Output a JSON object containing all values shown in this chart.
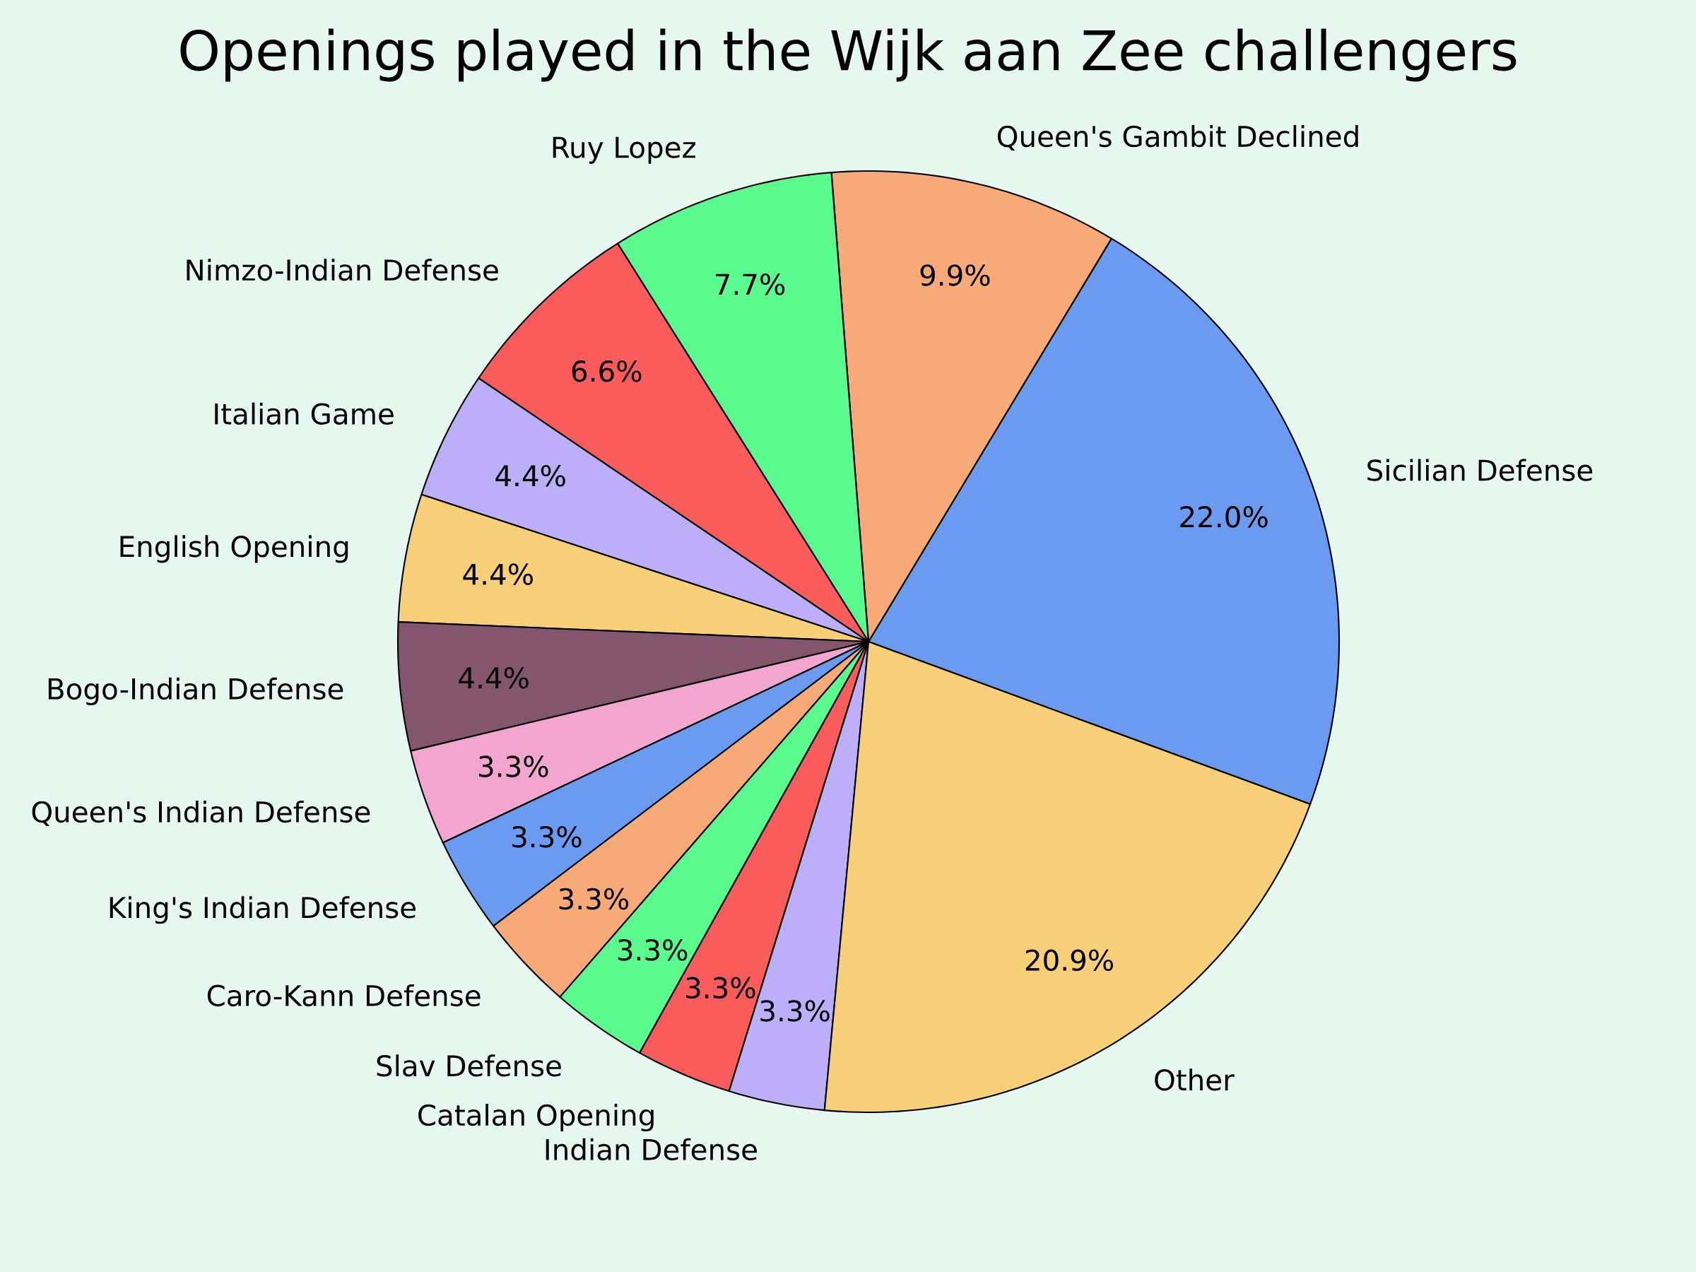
{
  "chart_data": {
    "type": "pie",
    "title": "Openings played in the Wijk aan Zee challengers",
    "categories": [
      "Sicilian Defense",
      "Queen's Gambit Declined",
      "Ruy Lopez",
      "Nimzo-Indian Defense",
      "Italian Game",
      "English Opening",
      "Bogo-Indian Defense",
      "Queen's Indian Defense",
      "King's Indian Defense",
      "Caro-Kann Defense",
      "Slav Defense",
      "Catalan Opening",
      "Indian Defense",
      "Other"
    ],
    "values": [
      22.0,
      9.9,
      7.7,
      6.6,
      4.4,
      4.4,
      4.4,
      3.3,
      3.3,
      3.3,
      3.3,
      3.3,
      3.3,
      20.9
    ],
    "value_labels": [
      "22.0%",
      "9.9%",
      "7.7%",
      "6.6%",
      "4.4%",
      "4.4%",
      "4.4%",
      "3.3%",
      "3.3%",
      "3.3%",
      "3.3%",
      "3.3%",
      "3.3%",
      "20.9%"
    ],
    "colors": [
      "#6a9bf0",
      "#f7a978",
      "#5afa8c",
      "#fa5c5c",
      "#bdaefa",
      "#f7cf78",
      "#83566e",
      "#f2a6cf",
      "#6a9bf0",
      "#f7a978",
      "#5afa8c",
      "#fa5c5c",
      "#bdaefa",
      "#f7cf78"
    ]
  }
}
